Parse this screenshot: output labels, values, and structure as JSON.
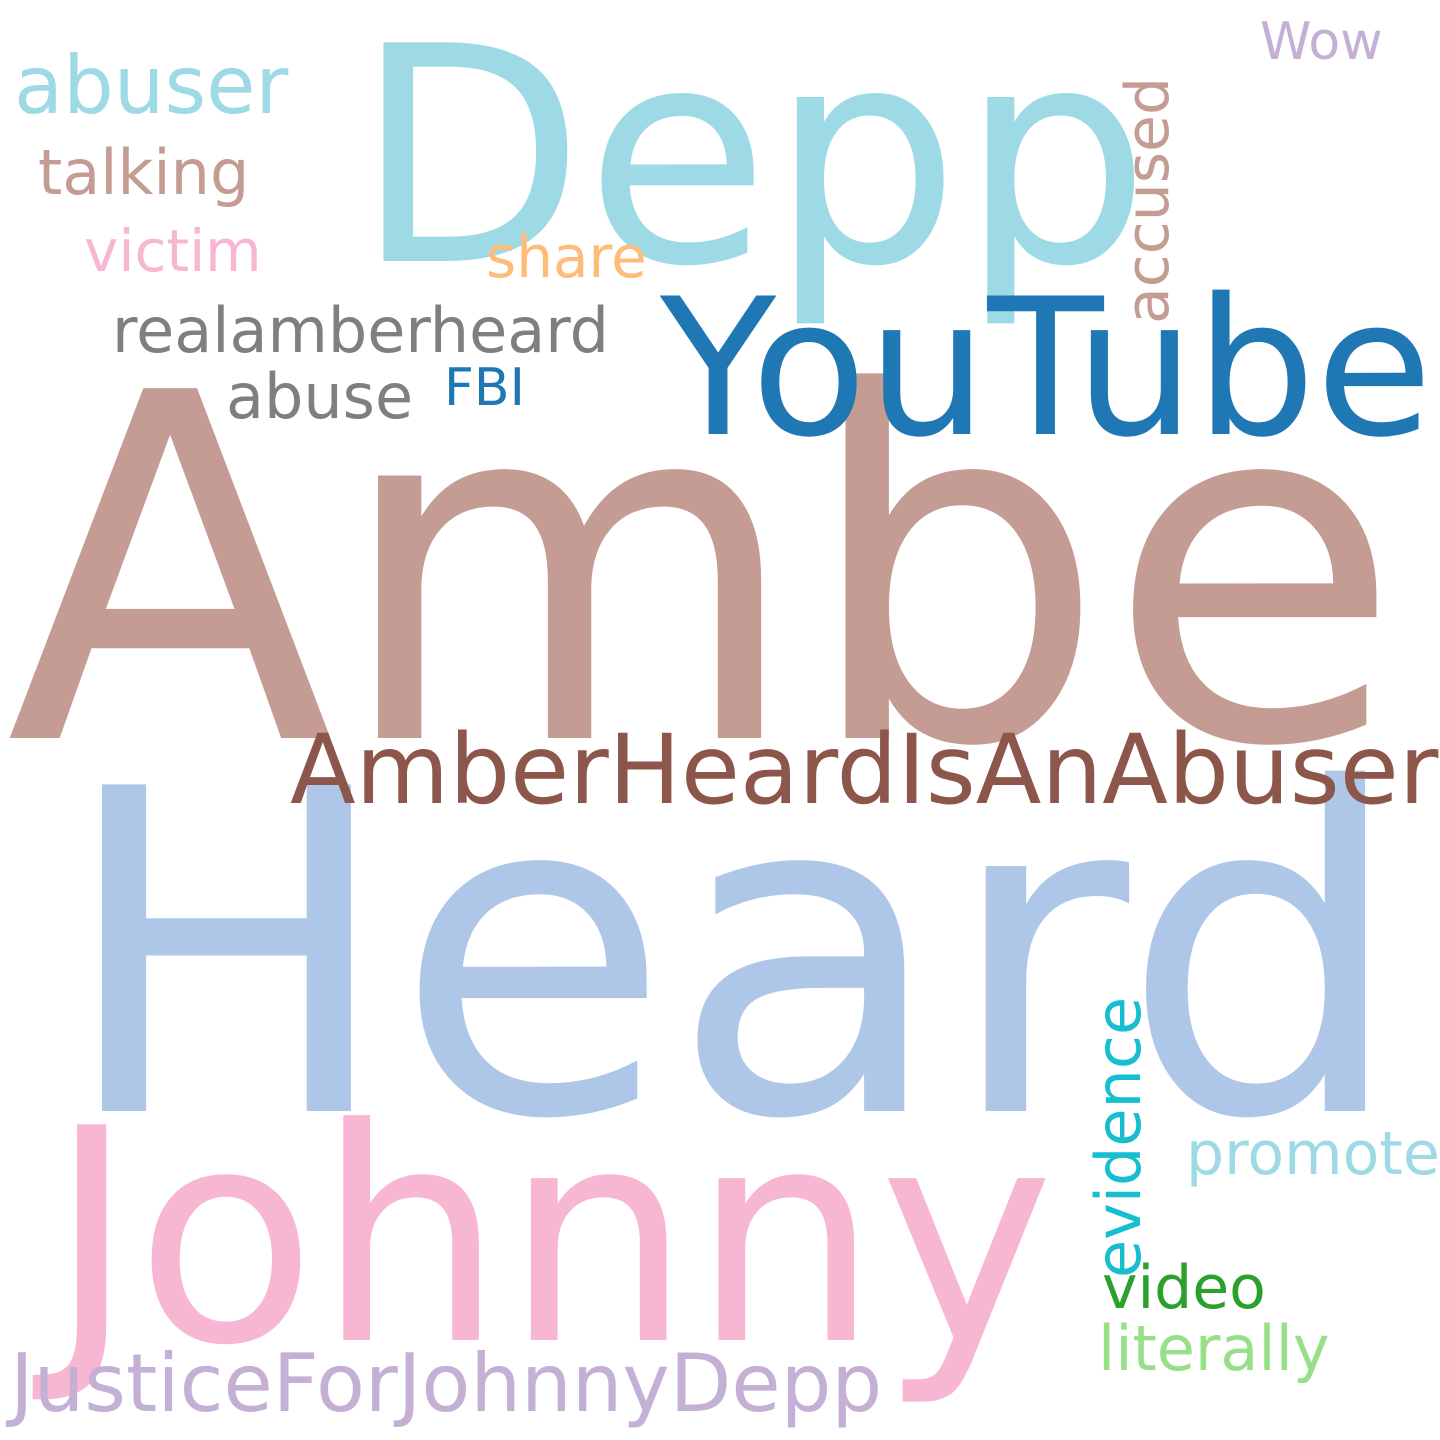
{
  "background_color": "#ffffff",
  "words": [
    {
      "text": "Amber",
      "color": "#c49c94",
      "orientation": "horizontal"
    },
    {
      "text": "Heard",
      "color": "#aec7e8",
      "orientation": "horizontal"
    },
    {
      "text": "Depp",
      "color": "#9edae5",
      "orientation": "horizontal"
    },
    {
      "text": "Johnny",
      "color": "#f7b6d2",
      "orientation": "horizontal"
    },
    {
      "text": "YouTube",
      "color": "#1f77b4",
      "orientation": "horizontal"
    },
    {
      "text": "AmberHeardIsAnAbuser",
      "color": "#8c564b",
      "orientation": "horizontal"
    },
    {
      "text": "JusticeForJohnnyDepp",
      "color": "#c5b0d5",
      "orientation": "horizontal"
    },
    {
      "text": "abuser",
      "color": "#9edae5",
      "orientation": "horizontal"
    },
    {
      "text": "realamberheard",
      "color": "#7f7f7f",
      "orientation": "horizontal"
    },
    {
      "text": "talking",
      "color": "#c49c94",
      "orientation": "horizontal"
    },
    {
      "text": "abuse",
      "color": "#7f7f7f",
      "orientation": "horizontal"
    },
    {
      "text": "victim",
      "color": "#f7b6d2",
      "orientation": "horizontal"
    },
    {
      "text": "share",
      "color": "#ffbb78",
      "orientation": "horizontal"
    },
    {
      "text": "FBI",
      "color": "#1f77b4",
      "orientation": "horizontal"
    },
    {
      "text": "Wow",
      "color": "#c5b0d5",
      "orientation": "horizontal"
    },
    {
      "text": "video",
      "color": "#2ca02c",
      "orientation": "horizontal"
    },
    {
      "text": "literally",
      "color": "#98df8a",
      "orientation": "horizontal"
    },
    {
      "text": "promote",
      "color": "#9edae5",
      "orientation": "horizontal"
    },
    {
      "text": "accused",
      "color": "#c49c94",
      "orientation": "vertical"
    },
    {
      "text": "evidence",
      "color": "#17becf",
      "orientation": "vertical"
    }
  ]
}
